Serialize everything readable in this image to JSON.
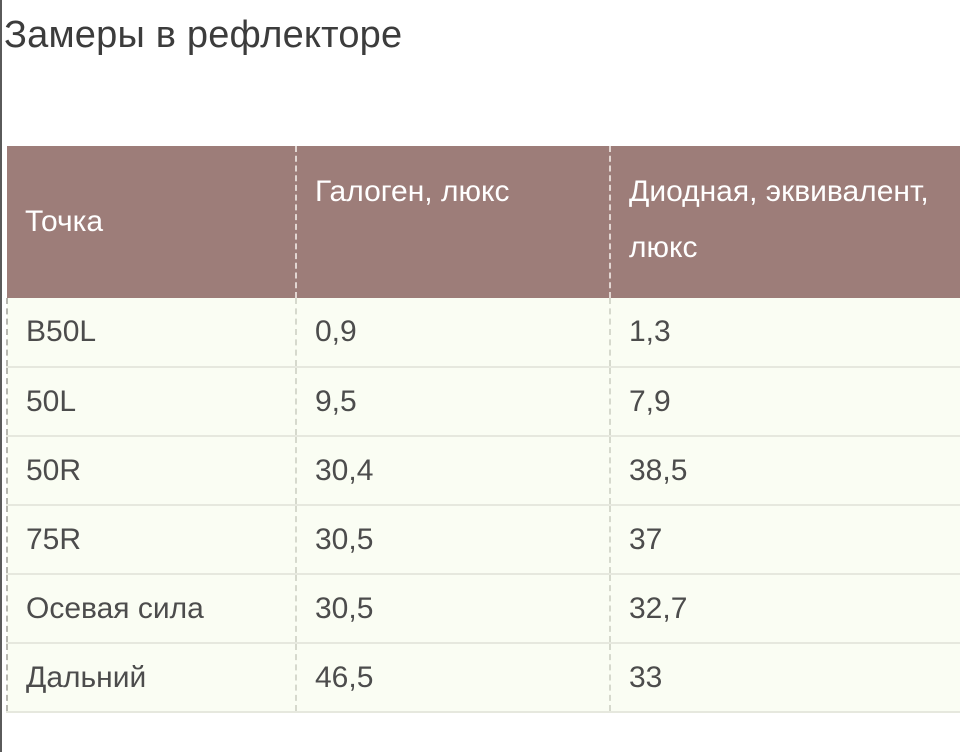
{
  "title": "Замеры в рефлекторе",
  "table": {
    "headers": [
      "Точка",
      "Галоген, люкс",
      "Диодная, эквивалент, люкс"
    ],
    "rows": [
      [
        "B50L",
        "0,9",
        "1,3"
      ],
      [
        "50L",
        "9,5",
        "7,9"
      ],
      [
        "50R",
        "30,4",
        "38,5"
      ],
      [
        "75R",
        "30,5",
        "37"
      ],
      [
        "Осевая сила",
        "30,5",
        "32,7"
      ],
      [
        "Дальний",
        "46,5",
        "33"
      ]
    ]
  },
  "colors": {
    "header_bg": "#9d7d79",
    "header_text": "#ffffff",
    "row_bg": "#fafdf3",
    "text": "#4c4c4c",
    "title_text": "#3c3c3c"
  }
}
